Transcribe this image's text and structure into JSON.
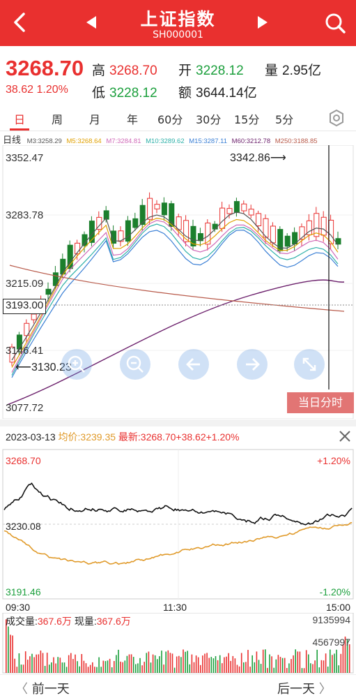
{
  "header": {
    "title": "上证指数",
    "code": "SH000001",
    "back_icon": "back-arrow-icon",
    "prev_icon": "triangle-left-icon",
    "next_icon": "triangle-right-icon",
    "search_icon": "search-icon",
    "bg": "#e9302f"
  },
  "quote": {
    "price": "3268.70",
    "change": "38.62 1.20%",
    "high_label": "高",
    "high": "3268.70",
    "open_label": "开",
    "open": "3228.12",
    "volume_label": "量",
    "volume": "2.95亿",
    "low_label": "低",
    "low": "3228.12",
    "amount_label": "额",
    "amount": "3644.14亿",
    "up_color": "#e9302f",
    "down_color": "#1b9f3c"
  },
  "tabs": [
    {
      "label": "日"
    },
    {
      "label": "周"
    },
    {
      "label": "月"
    },
    {
      "label": "年"
    },
    {
      "label": "60分"
    },
    {
      "label": "30分"
    },
    {
      "label": "15分"
    },
    {
      "label": "5分"
    }
  ],
  "settings_icon": "gear-icon",
  "ma": {
    "label": "日线",
    "items": [
      {
        "text": "M3:3258.29",
        "color": "#555555"
      },
      {
        "text": "M5:3268.64",
        "color": "#e0a000"
      },
      {
        "text": "M7:3284.81",
        "color": "#d06ab8"
      },
      {
        "text": "M10:3289.62",
        "color": "#2db0a8"
      },
      {
        "text": "M15:3287.11",
        "color": "#3a7fd5"
      },
      {
        "text": "M60:3212.78",
        "color": "#6b1f6b"
      },
      {
        "text": "M250:3188.85",
        "color": "#b85a4a"
      }
    ]
  },
  "kline": {
    "y_labels": [
      "3352.47",
      "3283.78",
      "3215.09",
      "3146.41",
      "3077.72"
    ],
    "max_mark": "3342.86",
    "min_mark": "3130.23",
    "current_box": "3193.00",
    "controls": [
      "zoom-in-icon",
      "zoom-out-icon",
      "arrow-left-icon",
      "arrow-right-icon",
      "expand-icon"
    ],
    "today_button": "当日分时"
  },
  "intraday": {
    "date": "2023-03-13",
    "avg_label": "均价:",
    "avg_value": "3239.35",
    "latest_label": "最新:",
    "latest_value": "3268.70+38.62+1.20%",
    "close_icon": "close-icon",
    "top_price": "3268.70",
    "mid_price": "3230.08",
    "bottom_price": "3191.46",
    "top_pct": "+1.20%",
    "bottom_pct": "-1.20%",
    "time_start": "09:30",
    "time_mid": "11:30",
    "time_end": "15:00"
  },
  "volume": {
    "total_label": "成交量:",
    "total_value": "367.6万",
    "current_label": "现量:",
    "current_value": "367.6万",
    "max_label": "9135994",
    "mid_label": "4567997"
  },
  "footer": {
    "prev_day": "前一天",
    "next_day": "后一天"
  }
}
